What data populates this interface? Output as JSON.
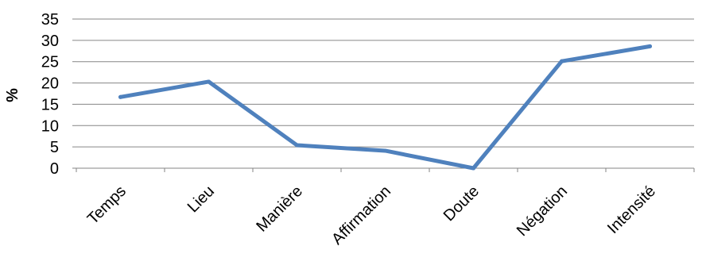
{
  "chart_data": {
    "type": "line",
    "categories": [
      "Temps",
      "Lieu",
      "Manière",
      "Affirmation",
      "Doute",
      "Négation",
      "Intensité"
    ],
    "series": [
      {
        "values": [
          16.7,
          20.3,
          5.4,
          4.1,
          0,
          25.1,
          28.6
        ]
      }
    ],
    "xlabel": "",
    "ylabel": "%",
    "ylim": [
      0,
      35
    ],
    "yticks": [
      0,
      5,
      10,
      15,
      20,
      25,
      30,
      35
    ],
    "grid": true,
    "legend": "none",
    "colors": {
      "series": "#4f81bd",
      "grid": "#868686"
    }
  }
}
